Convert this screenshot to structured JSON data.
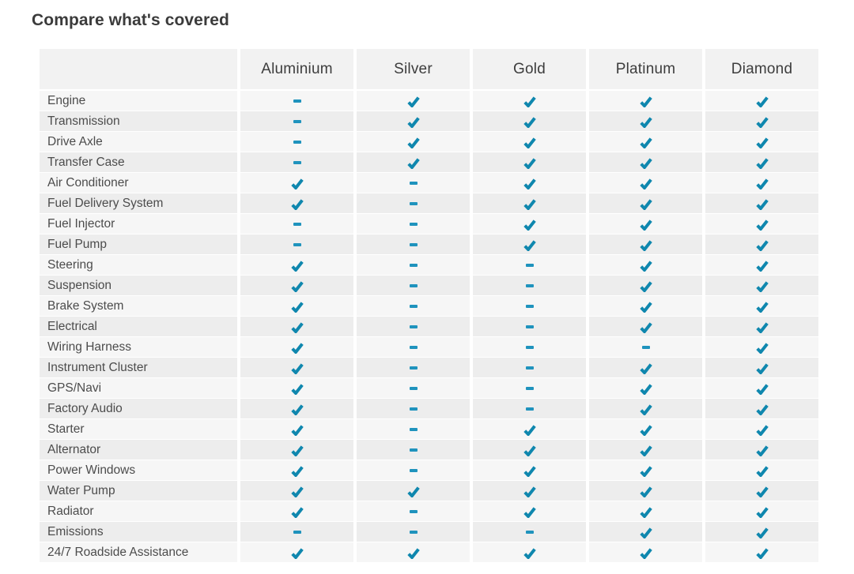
{
  "title": "Compare what's covered",
  "table": {
    "plans": [
      "Aluminium",
      "Silver",
      "Gold",
      "Platinum",
      "Diamond"
    ],
    "rows": [
      {
        "feature": "Engine",
        "covered": [
          false,
          true,
          true,
          true,
          true
        ]
      },
      {
        "feature": "Transmission",
        "covered": [
          false,
          true,
          true,
          true,
          true
        ]
      },
      {
        "feature": "Drive Axle",
        "covered": [
          false,
          true,
          true,
          true,
          true
        ]
      },
      {
        "feature": "Transfer Case",
        "covered": [
          false,
          true,
          true,
          true,
          true
        ]
      },
      {
        "feature": "Air Conditioner",
        "covered": [
          true,
          false,
          true,
          true,
          true
        ]
      },
      {
        "feature": "Fuel Delivery System",
        "covered": [
          true,
          false,
          true,
          true,
          true
        ]
      },
      {
        "feature": "Fuel Injector",
        "covered": [
          false,
          false,
          true,
          true,
          true
        ]
      },
      {
        "feature": "Fuel Pump",
        "covered": [
          false,
          false,
          true,
          true,
          true
        ]
      },
      {
        "feature": "Steering",
        "covered": [
          true,
          false,
          false,
          true,
          true
        ]
      },
      {
        "feature": "Suspension",
        "covered": [
          true,
          false,
          false,
          true,
          true
        ]
      },
      {
        "feature": "Brake System",
        "covered": [
          true,
          false,
          false,
          true,
          true
        ]
      },
      {
        "feature": "Electrical",
        "covered": [
          true,
          false,
          false,
          true,
          true
        ]
      },
      {
        "feature": "Wiring Harness",
        "covered": [
          true,
          false,
          false,
          false,
          true
        ]
      },
      {
        "feature": "Instrument Cluster",
        "covered": [
          true,
          false,
          false,
          true,
          true
        ]
      },
      {
        "feature": "GPS/Navi",
        "covered": [
          true,
          false,
          false,
          true,
          true
        ]
      },
      {
        "feature": "Factory Audio",
        "covered": [
          true,
          false,
          false,
          true,
          true
        ]
      },
      {
        "feature": "Starter",
        "covered": [
          true,
          false,
          true,
          true,
          true
        ]
      },
      {
        "feature": "Alternator",
        "covered": [
          true,
          false,
          true,
          true,
          true
        ]
      },
      {
        "feature": "Power Windows",
        "covered": [
          true,
          false,
          true,
          true,
          true
        ]
      },
      {
        "feature": "Water Pump",
        "covered": [
          true,
          true,
          true,
          true,
          true
        ]
      },
      {
        "feature": "Radiator",
        "covered": [
          true,
          false,
          true,
          true,
          true
        ]
      },
      {
        "feature": "Emissions",
        "covered": [
          false,
          false,
          false,
          true,
          true
        ]
      },
      {
        "feature": "24/7 Roadside Assistance",
        "covered": [
          true,
          true,
          true,
          true,
          true
        ]
      }
    ]
  },
  "icons": {
    "covered": "check-icon",
    "not_covered": "dash-icon"
  },
  "colors": {
    "check": "#0f87ae",
    "dash": "#1f93bd",
    "row_odd": "#f6f6f6",
    "row_even": "#ededed",
    "header_bg": "#f2f2f2"
  }
}
